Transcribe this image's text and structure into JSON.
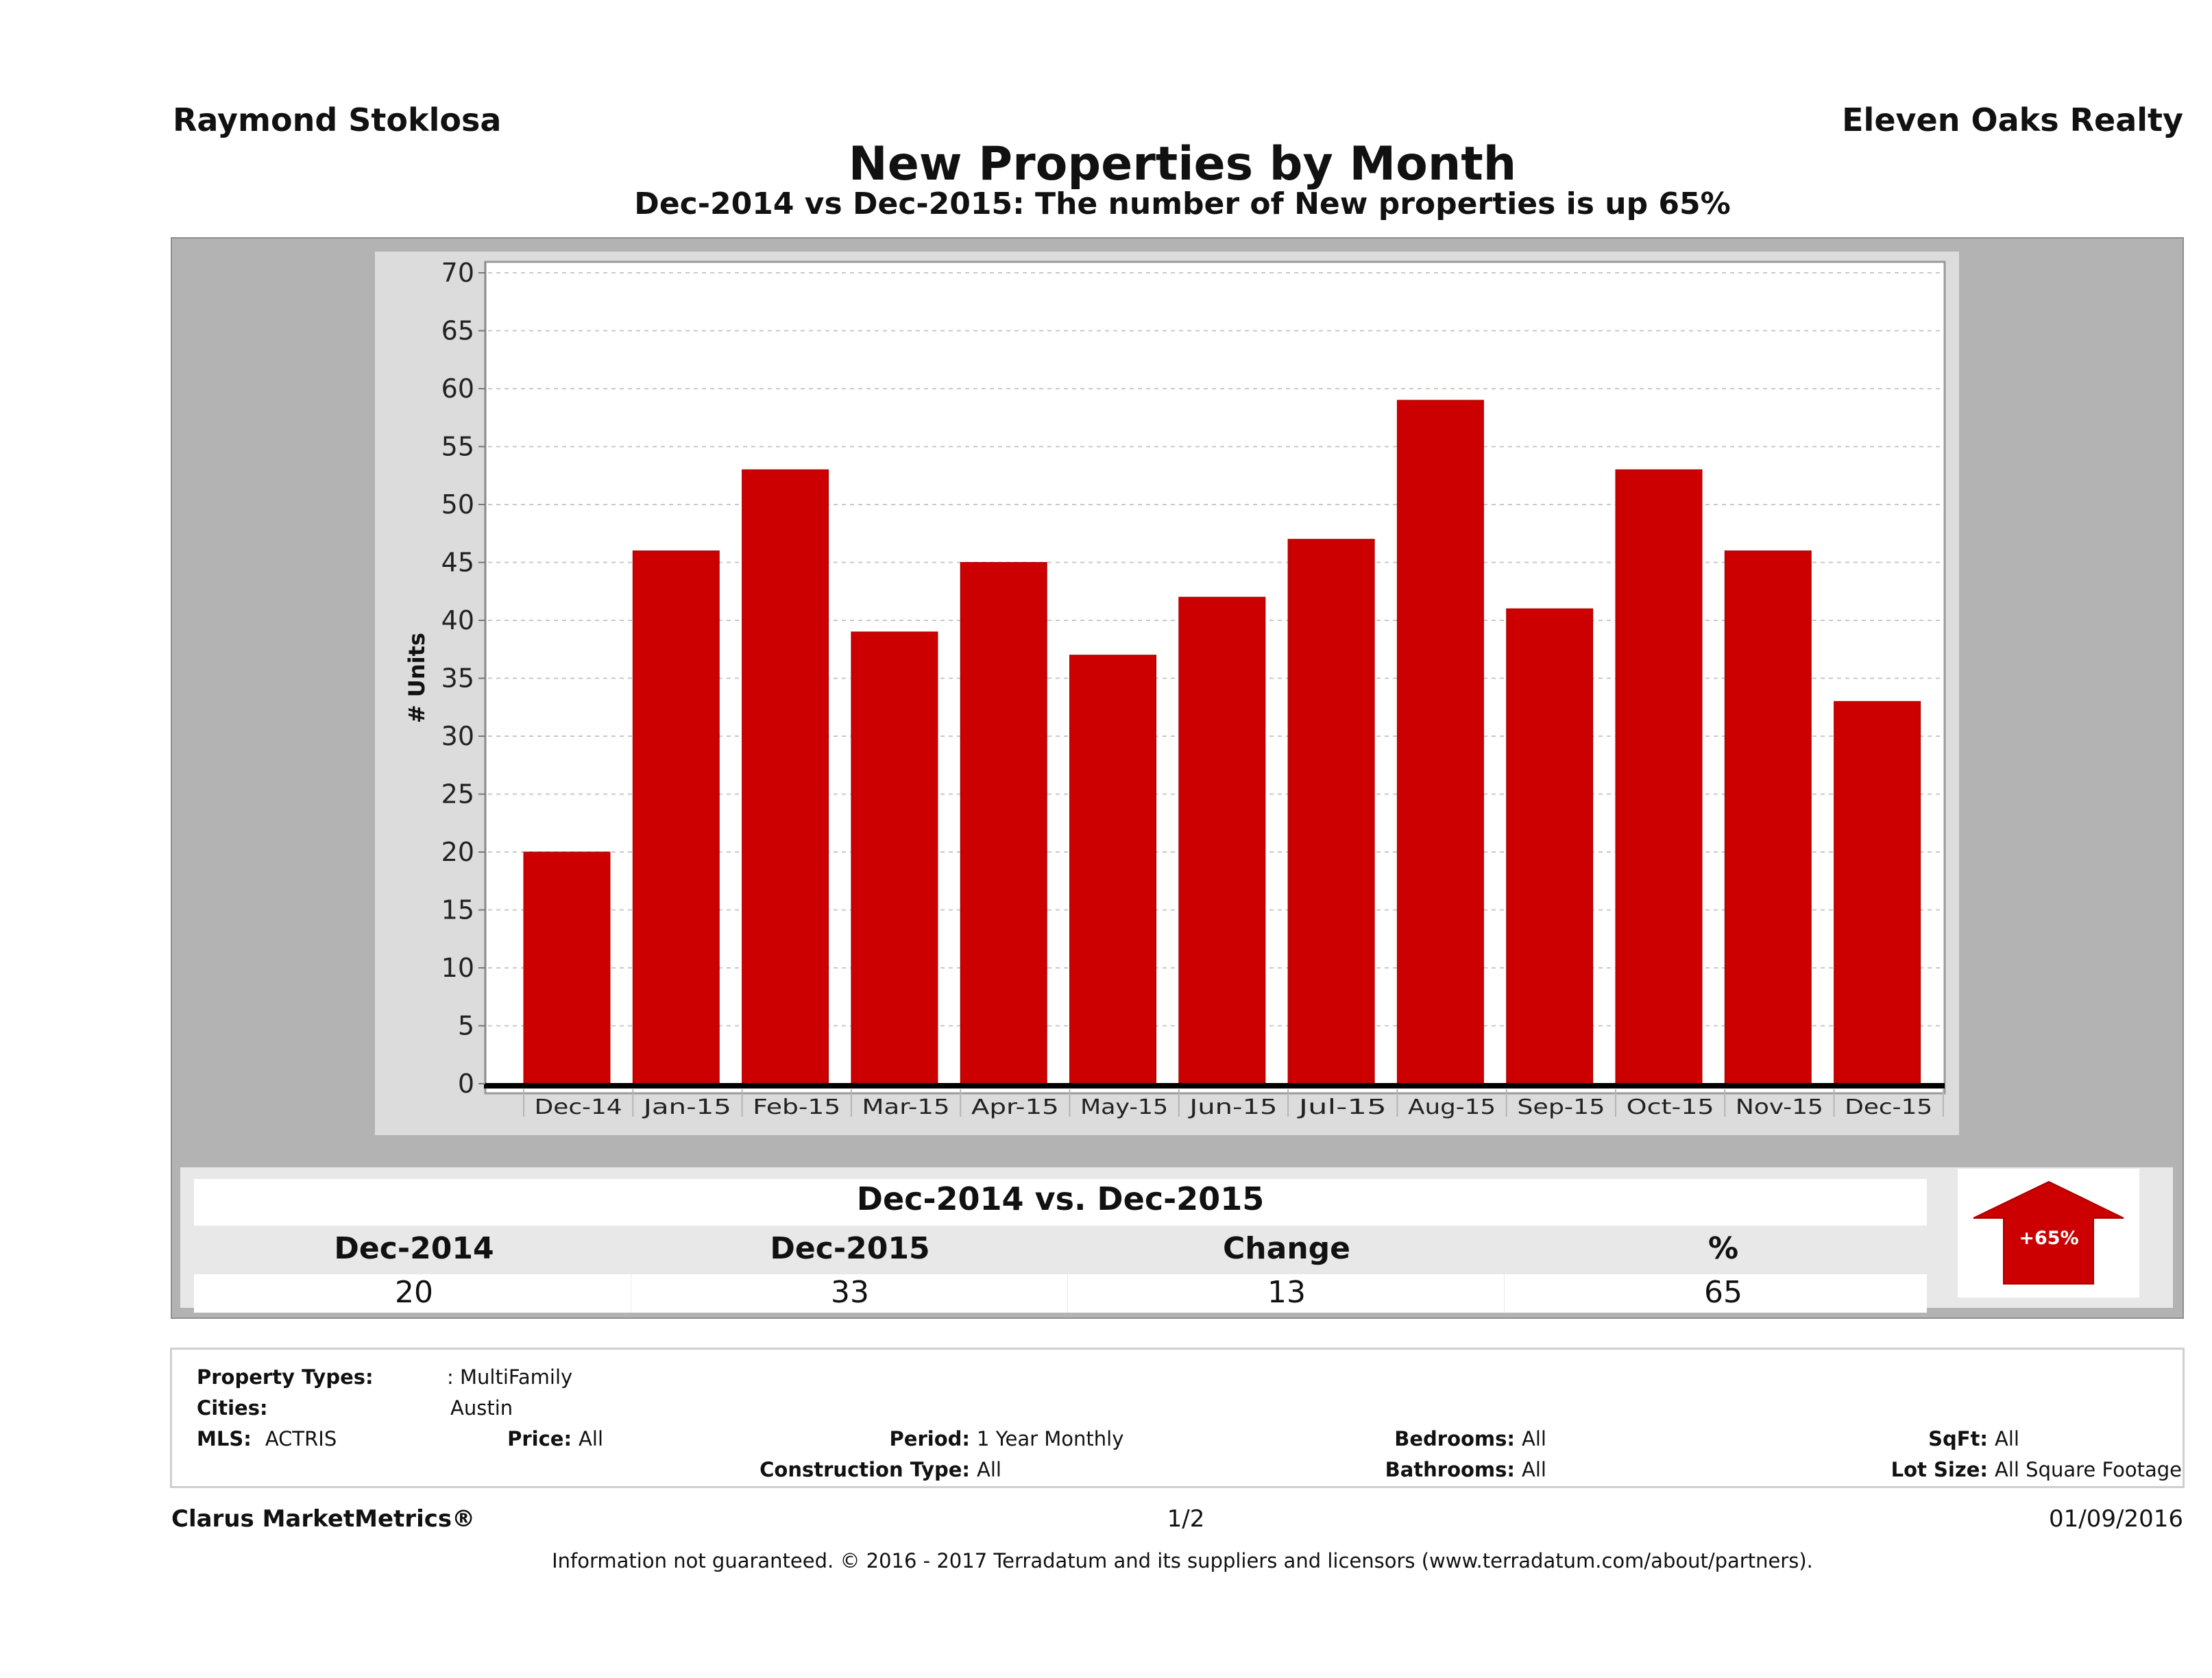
{
  "header": {
    "agent_name": "Raymond Stoklosa",
    "brokerage": "Eleven Oaks Realty",
    "title": "New Properties by Month",
    "subtitle": "Dec-2014 vs Dec-2015: The number of New  properties is up 65%"
  },
  "colors": {
    "bar": "#cc0000",
    "outer_panel": "#b3b3b3",
    "chart_panel": "#dcdcdc",
    "arrow": "#cc0000"
  },
  "chart_data": {
    "type": "bar",
    "title": "New Properties by Month",
    "xlabel": "",
    "ylabel": "# Units",
    "categories": [
      "Dec-14",
      "Jan-15",
      "Feb-15",
      "Mar-15",
      "Apr-15",
      "May-15",
      "Jun-15",
      "Jul-15",
      "Aug-15",
      "Sep-15",
      "Oct-15",
      "Nov-15",
      "Dec-15"
    ],
    "values": [
      20,
      46,
      53,
      39,
      45,
      37,
      42,
      47,
      59,
      41,
      53,
      46,
      33
    ],
    "ylim": [
      0,
      70
    ],
    "yticks": [
      "0",
      "5",
      "10",
      "15",
      "20",
      "25",
      "30",
      "35",
      "40",
      "45",
      "50",
      "55",
      "60",
      "65",
      "70"
    ],
    "ytick_values": [
      0,
      5,
      10,
      15,
      20,
      25,
      30,
      35,
      40,
      45,
      50,
      55,
      60,
      65,
      70
    ],
    "grid": true,
    "legend": "none"
  },
  "summary": {
    "title": "Dec-2014 vs. Dec-2015",
    "headers": [
      "Dec-2014",
      "Dec-2015",
      "Change",
      "%"
    ],
    "values": [
      "20",
      "33",
      "13",
      "65"
    ],
    "badge": "+65%"
  },
  "criteria": {
    "property_types_label": "Property Types:",
    "property_types_value": ": MultiFamily",
    "cities_label": "Cities:",
    "cities_value": "Austin",
    "mls_label": "MLS:",
    "mls_value": "ACTRIS",
    "price_label": "Price:",
    "price_value": "All",
    "period_label": "Period:",
    "period_value": "1 Year Monthly",
    "construction_label": "Construction Type:",
    "construction_value": "All",
    "bedrooms_label": "Bedrooms:",
    "bedrooms_value": "All",
    "bathrooms_label": "Bathrooms:",
    "bathrooms_value": "All",
    "sqft_label": "SqFt:",
    "sqft_value": "All",
    "lot_size_label": "Lot Size:",
    "lot_size_value": "All Square Footage"
  },
  "footer": {
    "product": "Clarus MarketMetrics®",
    "page": "1/2",
    "date": "01/09/2016",
    "disclaimer": "Information not guaranteed. © 2016 - 2017 Terradatum and its suppliers and licensors (www.terradatum.com/about/partners)."
  }
}
